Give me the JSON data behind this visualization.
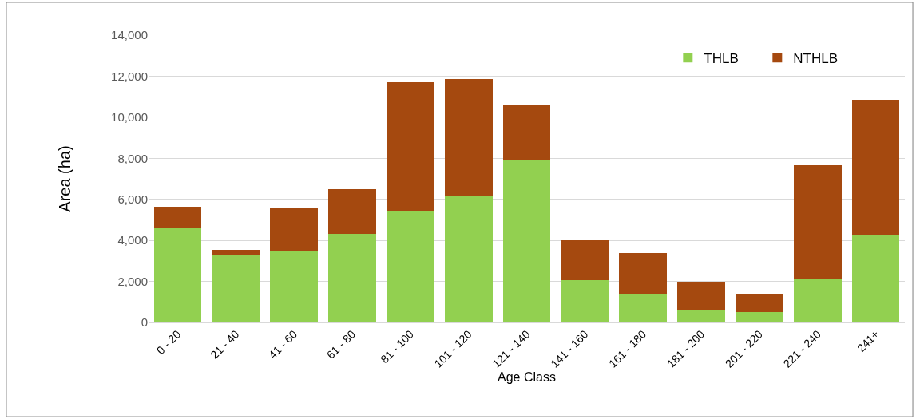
{
  "chart_data": {
    "type": "bar",
    "stacked": true,
    "xlabel": "Age Class",
    "ylabel": "Area (ha)",
    "categories": [
      "0 - 20",
      "21 - 40",
      "41 - 60",
      "61 - 80",
      "81 - 100",
      "101 - 120",
      "121 - 140",
      "141 - 160",
      "161 - 180",
      "181 - 200",
      "201 - 220",
      "221 - 240",
      "241+"
    ],
    "series": [
      {
        "name": "THLB",
        "color": "#92d050",
        "values": [
          4580,
          3310,
          3490,
          4300,
          5460,
          6180,
          7920,
          2070,
          1350,
          610,
          500,
          2110,
          4270
        ]
      },
      {
        "name": "NTHLB",
        "color": "#a5490f",
        "values": [
          1070,
          220,
          2060,
          2200,
          6240,
          5700,
          2700,
          1930,
          2040,
          1360,
          880,
          5540,
          6570
        ]
      }
    ],
    "ylim": [
      0,
      14000
    ],
    "yticks": [
      {
        "value": 0,
        "label": "0"
      },
      {
        "value": 2000,
        "label": "2,000"
      },
      {
        "value": 4000,
        "label": "4,000"
      },
      {
        "value": 6000,
        "label": "6,000"
      },
      {
        "value": 8000,
        "label": "8,000"
      },
      {
        "value": 10000,
        "label": "10,000"
      },
      {
        "value": 12000,
        "label": "12,000"
      },
      {
        "value": 14000,
        "label": "14,000"
      }
    ],
    "grid": "y",
    "legend": "top right"
  }
}
